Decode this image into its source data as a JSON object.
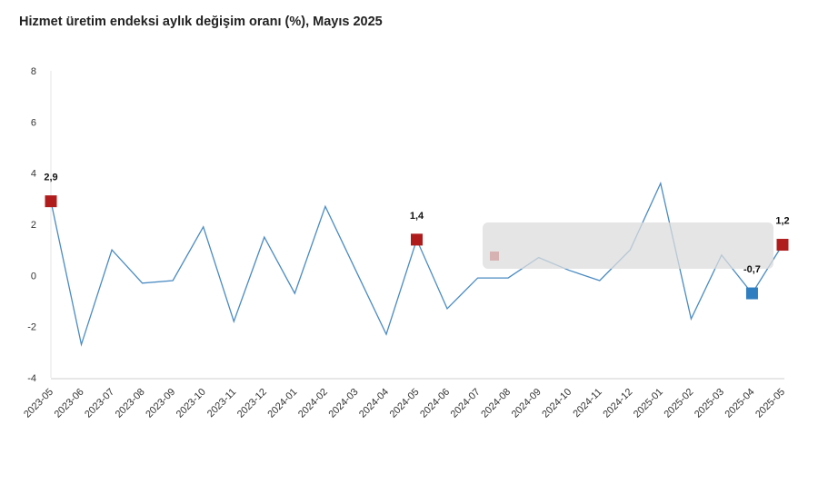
{
  "chart_data": {
    "type": "line",
    "title": "Hizmet üretim endeksi aylık değişim oranı (%), Mayıs 2025",
    "xlabel": "",
    "ylabel": "",
    "ylim": [
      -4,
      8
    ],
    "yticks": [
      8,
      6,
      4,
      2,
      0,
      -2,
      -4
    ],
    "grid": false,
    "categories": [
      "2023-05",
      "2023-06",
      "2023-07",
      "2023-08",
      "2023-09",
      "2023-10",
      "2023-11",
      "2023-12",
      "2024-01",
      "2024-02",
      "2024-03",
      "2024-04",
      "2024-05",
      "2024-06",
      "2024-07",
      "2024-08",
      "2024-09",
      "2024-10",
      "2024-11",
      "2024-12",
      "2025-01",
      "2025-02",
      "2025-03",
      "2025-04",
      "2025-05"
    ],
    "series": [
      {
        "values": [
          2.9,
          -2.7,
          1.0,
          -0.3,
          -0.2,
          1.9,
          -1.8,
          1.5,
          -0.7,
          2.7,
          0.2,
          -2.3,
          1.4,
          -1.3,
          -0.1,
          -0.1,
          0.7,
          0.2,
          -0.2,
          1.0,
          3.6,
          -1.7,
          0.8,
          -0.7,
          1.2
        ]
      }
    ],
    "line_color": "#4a8bc2",
    "highlights": [
      {
        "category": "2023-05",
        "value": 2.9,
        "label": "2,9",
        "color": "#b01c1c"
      },
      {
        "category": "2024-05",
        "value": 1.4,
        "label": "1,4",
        "color": "#b01c1c"
      },
      {
        "category": "2025-04",
        "value": -0.7,
        "label": "-0,7",
        "color": "#2f7ec0"
      },
      {
        "category": "2025-05",
        "value": 1.2,
        "label": "1,2",
        "color": "#b01c1c"
      }
    ]
  }
}
